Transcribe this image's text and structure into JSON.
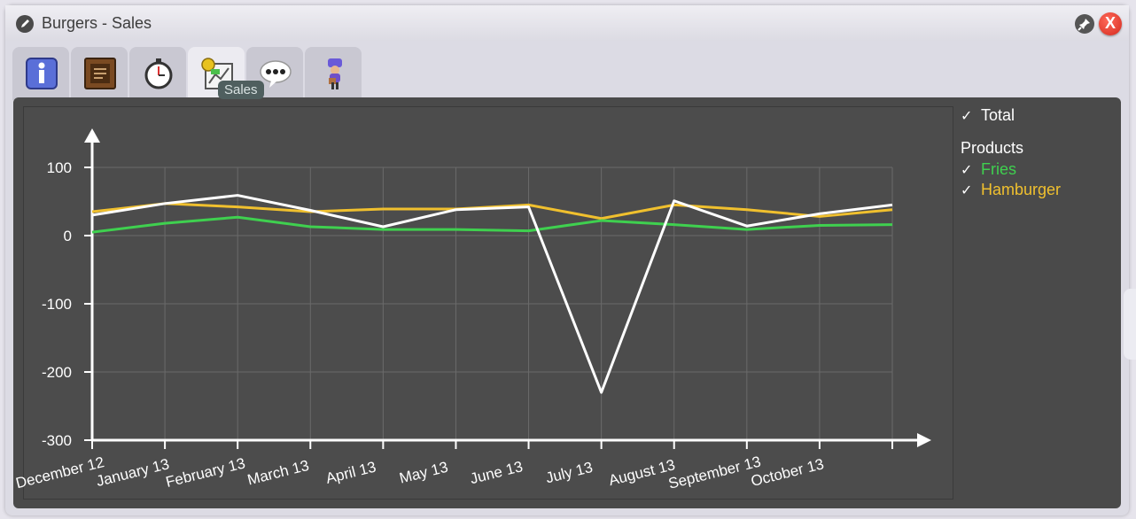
{
  "window": {
    "title": "Burgers - Sales"
  },
  "tabs": [
    {
      "name": "info",
      "icon": "info-icon"
    },
    {
      "name": "recipe",
      "icon": "recipe-board-icon"
    },
    {
      "name": "timer",
      "icon": "stopwatch-icon"
    },
    {
      "name": "sales",
      "icon": "sales-chart-icon",
      "active": true
    },
    {
      "name": "chat",
      "icon": "speech-bubble-icon"
    },
    {
      "name": "staff",
      "icon": "staff-figure-icon"
    }
  ],
  "tooltip": "Sales",
  "legend": {
    "total_label": "Total",
    "products_heading": "Products",
    "items": [
      {
        "label": "Fries",
        "color": "#3fd04f"
      },
      {
        "label": "Hamburger",
        "color": "#f0c02e"
      }
    ]
  },
  "colors": {
    "total": "#ffffff",
    "fries": "#3fd04f",
    "hamburger": "#f0c02e",
    "grid": "#6a6a6a"
  },
  "chart_data": {
    "type": "line",
    "x": [
      "December 12",
      "January 13",
      "February 13",
      "March 13",
      "April 13",
      "May 13",
      "June 13",
      "July 13",
      "August 13",
      "September 13",
      "October 13",
      ""
    ],
    "ylim": [
      -300,
      150
    ],
    "yticks": [
      100,
      0,
      -100,
      -200,
      -300
    ],
    "grid": true,
    "legend_placement": "right",
    "series": [
      {
        "name": "Total",
        "color": "#ffffff",
        "values": [
          30,
          47,
          59,
          37,
          13,
          38,
          42,
          -230,
          51,
          14,
          32,
          45
        ]
      },
      {
        "name": "Fries",
        "color": "#3fd04f",
        "values": [
          5,
          18,
          27,
          13,
          9,
          9,
          7,
          22,
          16,
          9,
          15,
          16
        ]
      },
      {
        "name": "Hamburger",
        "color": "#f0c02e",
        "values": [
          35,
          47,
          42,
          35,
          39,
          39,
          45,
          25,
          45,
          38,
          28,
          38
        ]
      }
    ]
  }
}
